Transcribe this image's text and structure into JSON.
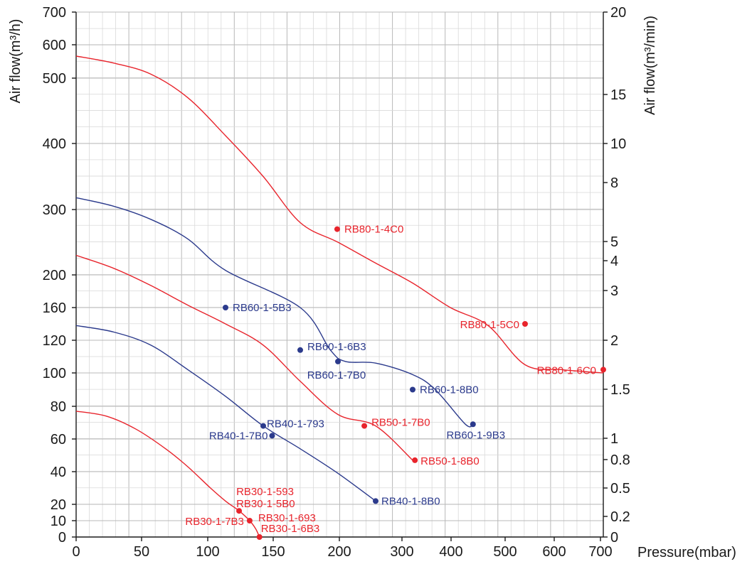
{
  "chart_data": {
    "type": "line",
    "xlabel": "Pressure(mbar)",
    "ylabel_left": "Air flow(m³/h)",
    "ylabel_right": "Air flow(m³/min)",
    "xlim": [
      0,
      700
    ],
    "ylim_left": [
      0,
      700
    ],
    "x_ticks": [
      0,
      50,
      100,
      150,
      200,
      250,
      300,
      350,
      400,
      450,
      500,
      550,
      600,
      650,
      700
    ],
    "x_tick_labels": [
      "0",
      "50",
      "100",
      "150",
      "200",
      "300",
      "400",
      "500",
      "600",
      "700"
    ],
    "left_ticks": [
      {
        "value": 0,
        "label": "0"
      },
      {
        "value": 10,
        "label": "10"
      },
      {
        "value": 20,
        "label": "20"
      },
      {
        "value": 40,
        "label": "40"
      },
      {
        "value": 60,
        "label": "60"
      },
      {
        "value": 80,
        "label": "80"
      },
      {
        "value": 100,
        "label": "100"
      },
      {
        "value": 120,
        "label": "120"
      },
      {
        "value": 160,
        "label": "160"
      },
      {
        "value": 200,
        "label": "200"
      },
      {
        "value": 300,
        "label": "300"
      },
      {
        "value": 400,
        "label": "400"
      },
      {
        "value": 500,
        "label": "500"
      },
      {
        "value": 600,
        "label": "600"
      },
      {
        "value": 700,
        "label": "700"
      }
    ],
    "right_ticks": [
      {
        "value": 0,
        "label": "0"
      },
      {
        "value": 0.2,
        "label": "0.2"
      },
      {
        "value": 0.5,
        "label": "0.5"
      },
      {
        "value": 0.8,
        "label": "0.8"
      },
      {
        "value": 1,
        "label": "1"
      },
      {
        "value": 1.5,
        "label": "1.5"
      },
      {
        "value": 2,
        "label": "2"
      },
      {
        "value": 3,
        "label": "3"
      },
      {
        "value": 4,
        "label": "4"
      },
      {
        "value": 5,
        "label": "5"
      },
      {
        "value": 8,
        "label": "8"
      },
      {
        "value": 10,
        "label": "10"
      },
      {
        "value": 15,
        "label": "15"
      },
      {
        "value": 20,
        "label": "20"
      }
    ],
    "grid": true,
    "colors": {
      "red": "#e8242c",
      "blue": "#2b3a8c",
      "grid": "#d0d0d0",
      "axis": "#1a1a1a"
    },
    "series": [
      {
        "color": "#e8242c",
        "points": [
          [
            0,
            77
          ],
          [
            40,
            74
          ],
          [
            80,
            66
          ],
          [
            120,
            54
          ],
          [
            150,
            43
          ],
          [
            180,
            30
          ],
          [
            200,
            22
          ],
          [
            218,
            16
          ],
          [
            232,
            10
          ],
          [
            240,
            5
          ],
          [
            245,
            0
          ]
        ],
        "labels": [
          {
            "x": 218,
            "y": 16,
            "marker": true,
            "text": "RB30-1-593",
            "dx": -4,
            "dy": -22,
            "anchor": "start"
          },
          {
            "x": 218,
            "y": 16,
            "marker": false,
            "text": "RB30-1-5B0",
            "dx": -4,
            "dy": -5,
            "anchor": "start"
          },
          {
            "x": 232,
            "y": 10,
            "marker": true,
            "text": "RB30-1-7B3",
            "dx": -8,
            "dy": 6,
            "anchor": "end"
          },
          {
            "x": 232,
            "y": 10,
            "marker": false,
            "text": "RB30-1-693",
            "dx": 12,
            "dy": 1,
            "anchor": "start"
          },
          {
            "x": 245,
            "y": 0,
            "marker": true,
            "text": "RB30-1-6B3",
            "dx": 2,
            "dy": -7,
            "anchor": "start"
          }
        ]
      },
      {
        "color": "#2b3a8c",
        "points": [
          [
            0,
            138
          ],
          [
            50,
            130
          ],
          [
            100,
            117
          ],
          [
            150,
            102
          ],
          [
            200,
            86
          ],
          [
            250,
            68
          ],
          [
            300,
            54
          ],
          [
            350,
            39
          ],
          [
            400,
            22
          ]
        ],
        "labels": [
          {
            "x": 250,
            "y": 68,
            "marker": true,
            "text": "RB40-1-793",
            "dx": 5,
            "dy": 2,
            "anchor": "start"
          },
          {
            "x": 262,
            "y": 62,
            "marker": true,
            "text": "RB40-1-7B0",
            "dx": -6,
            "dy": 5,
            "anchor": "end"
          },
          {
            "x": 400,
            "y": 22,
            "marker": true,
            "text": "RB40-1-8B0",
            "dx": 8,
            "dy": 5,
            "anchor": "start"
          }
        ]
      },
      {
        "color": "#e8242c",
        "points": [
          [
            0,
            230
          ],
          [
            50,
            210
          ],
          [
            100,
            187
          ],
          [
            150,
            163
          ],
          [
            200,
            140
          ],
          [
            250,
            117
          ],
          [
            300,
            95
          ],
          [
            350,
            75
          ],
          [
            400,
            68
          ],
          [
            450,
            47
          ]
        ],
        "labels": [
          {
            "x": 385,
            "y": 68,
            "marker": true,
            "text": "RB50-1-7B0",
            "dx": 10,
            "dy": 0,
            "anchor": "start"
          },
          {
            "x": 453,
            "y": 47,
            "marker": true,
            "text": "RB50-1-8B0",
            "dx": 8,
            "dy": 6,
            "anchor": "start"
          }
        ]
      },
      {
        "color": "#2b3a8c",
        "points": [
          [
            0,
            318
          ],
          [
            50,
            305
          ],
          [
            100,
            285
          ],
          [
            150,
            255
          ],
          [
            200,
            207
          ],
          [
            300,
            160
          ],
          [
            340,
            114
          ],
          [
            360,
            107
          ],
          [
            400,
            106
          ],
          [
            450,
            99
          ],
          [
            480,
            90
          ],
          [
            520,
            69
          ],
          [
            530,
            69
          ]
        ],
        "labels": [
          {
            "x": 200,
            "y": 160,
            "marker": true,
            "text": "RB60-1-5B3",
            "dx": 10,
            "dy": 5,
            "anchor": "start"
          },
          {
            "x": 300,
            "y": 114,
            "marker": true,
            "text": "RB60-1-6B3",
            "dx": 10,
            "dy": 0,
            "anchor": "start"
          },
          {
            "x": 350,
            "y": 107,
            "marker": true,
            "text": "RB60-1-7B0",
            "dx": -2,
            "dy": 24,
            "anchor": "middle"
          },
          {
            "x": 450,
            "y": 90,
            "marker": true,
            "text": "RB60-1-8B0",
            "dx": 10,
            "dy": 5,
            "anchor": "start"
          },
          {
            "x": 530,
            "y": 69,
            "marker": true,
            "text": "RB60-1-9B3",
            "dx": 4,
            "dy": 20,
            "anchor": "middle"
          }
        ]
      },
      {
        "color": "#e8242c",
        "points": [
          [
            0,
            566
          ],
          [
            50,
            545
          ],
          [
            100,
            512
          ],
          [
            150,
            470
          ],
          [
            200,
            412
          ],
          [
            250,
            350
          ],
          [
            300,
            280
          ],
          [
            350,
            250
          ],
          [
            400,
            218
          ],
          [
            450,
            190
          ],
          [
            500,
            160
          ],
          [
            550,
            138
          ],
          [
            600,
            105
          ],
          [
            650,
            102
          ],
          [
            700,
            100
          ]
        ],
        "labels": [
          {
            "x": 349,
            "y": 270,
            "marker": true,
            "text": "RB80-1-4C0",
            "dx": 10,
            "dy": 5,
            "anchor": "start"
          },
          {
            "x": 600,
            "y": 140,
            "marker": true,
            "text": "RB80-1-5C0",
            "dx": -8,
            "dy": 6,
            "anchor": "end"
          },
          {
            "x": 700,
            "y": 102,
            "marker": true,
            "text": "RB80-1-6C0",
            "dx": -10,
            "dy": 6,
            "anchor": "end"
          }
        ]
      }
    ]
  }
}
